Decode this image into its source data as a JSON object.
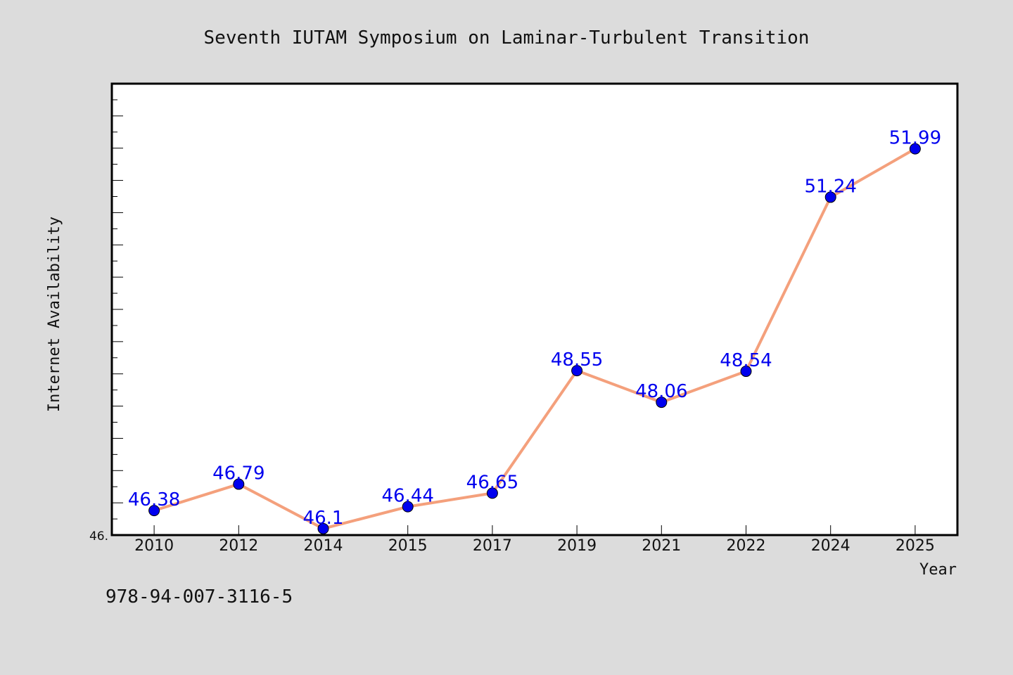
{
  "chart_data": {
    "type": "line",
    "title": "Seventh IUTAM Symposium on Laminar-Turbulent Transition",
    "xlabel": "Year",
    "ylabel": "Internet Availability",
    "categories": [
      "2010",
      "2012",
      "2014",
      "2015",
      "2017",
      "2019",
      "2021",
      "2022",
      "2024",
      "2025"
    ],
    "series": [
      {
        "values": [
          46.38,
          46.79,
          46.1,
          46.44,
          46.65,
          48.55,
          48.06,
          48.54,
          51.24,
          51.99
        ]
      }
    ],
    "data_labels": [
      "46.38",
      "46.79",
      "46.1",
      "46.44",
      "46.65",
      "48.55",
      "48.06",
      "48.54",
      "51.24",
      "51.99"
    ],
    "ylim": [
      46.0,
      53.0
    ],
    "y_tick_label": "46.",
    "grid": false,
    "line_color": "#f4a07c",
    "marker_color": "#0000ee",
    "label_color": "#0000ee",
    "background_color": "#dcdcdc",
    "plot_background_color": "#ffffff"
  },
  "footer": {
    "identifier": "978-94-007-3116-5"
  }
}
